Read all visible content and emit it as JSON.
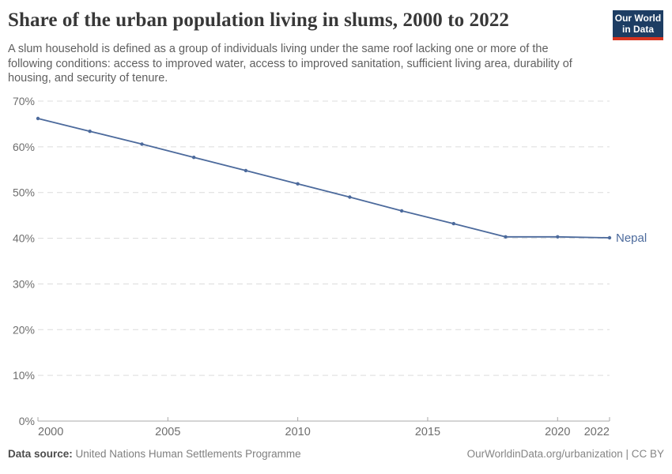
{
  "header": {
    "title": "Share of the urban population living in slums, 2000 to 2022",
    "subtitle": "A slum household is defined as a group of individuals living under the same roof lacking one or more of the following conditions: access to improved water, access to improved sanitation, sufficient living area, durability of housing, and security of tenure.",
    "logo": {
      "line1": "Our World",
      "line2": "in Data",
      "bg_color": "#1d3d63",
      "bar_color": "#d63420"
    }
  },
  "chart_data": {
    "type": "line",
    "title": "Share of the urban population living in slums, 2000 to 2022",
    "xlabel": "",
    "ylabel": "",
    "unit": "%",
    "x": [
      2000,
      2002,
      2004,
      2006,
      2008,
      2010,
      2012,
      2014,
      2016,
      2018,
      2020,
      2022
    ],
    "series": [
      {
        "name": "Nepal",
        "color": "#4C6A9C",
        "values": [
          66.2,
          63.4,
          60.6,
          57.7,
          54.8,
          51.9,
          49.0,
          46.0,
          43.2,
          40.3,
          40.3,
          40.1
        ]
      }
    ],
    "x_ticks": [
      2000,
      2005,
      2010,
      2015,
      2020,
      2022
    ],
    "y_ticks": [
      0,
      10,
      20,
      30,
      40,
      50,
      60,
      70
    ],
    "xlim": [
      2000,
      2022
    ],
    "ylim": [
      0,
      70
    ],
    "grid": "horizontal-dashed",
    "legend_position": "end-of-line",
    "end_label": "Nepal",
    "colors": {
      "line": "#4C6A9C",
      "gridline": "#dcdcdc",
      "axis": "#a8a8a8",
      "tick_label": "#6e6e6e"
    }
  },
  "footer": {
    "source_label": "Data source:",
    "source_value": " United Nations Human Settlements Programme",
    "attribution": "OurWorldinData.org/urbanization | CC BY"
  }
}
